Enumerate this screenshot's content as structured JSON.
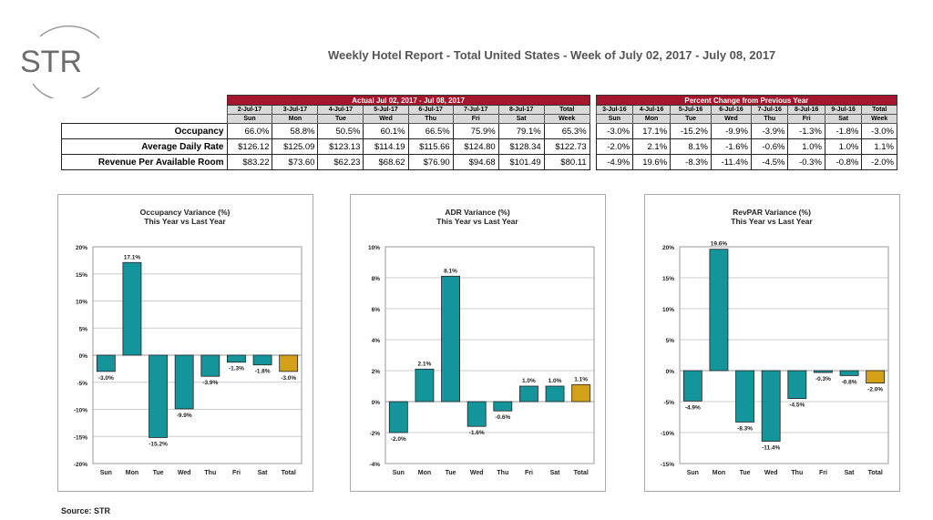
{
  "logo": {
    "text": "STR"
  },
  "title": "Weekly Hotel Report - Total United States - Week of July 02, 2017 - July 08, 2017",
  "table": {
    "actual_header": "Actual Jul 02, 2017 - Jul 08, 2017",
    "change_header": "Percent Change from Previous Year",
    "actual_dates": [
      "2-Jul-17",
      "3-Jul-17",
      "4-Jul-17",
      "5-Jul-17",
      "6-Jul-17",
      "7-Jul-17",
      "8-Jul-17",
      "Total"
    ],
    "change_dates": [
      "3-Jul-16",
      "4-Jul-16",
      "5-Jul-16",
      "6-Jul-16",
      "7-Jul-16",
      "8-Jul-16",
      "9-Jul-16",
      "Total"
    ],
    "days": [
      "Sun",
      "Mon",
      "Tue",
      "Wed",
      "Thu",
      "Fri",
      "Sat",
      "Week"
    ],
    "rows": [
      {
        "label": "Occupancy",
        "actual": [
          "66.0%",
          "58.8%",
          "50.5%",
          "60.1%",
          "66.5%",
          "75.9%",
          "79.1%",
          "65.3%"
        ],
        "change": [
          "-3.0%",
          "17.1%",
          "-15.2%",
          "-9.9%",
          "-3.9%",
          "-1.3%",
          "-1.8%",
          "-3.0%"
        ]
      },
      {
        "label": "Average Daily Rate",
        "actual": [
          "$126.12",
          "$125.09",
          "$123.13",
          "$114.19",
          "$115.66",
          "$124.80",
          "$128.34",
          "$122.73"
        ],
        "change": [
          "-2.0%",
          "2.1%",
          "8.1%",
          "-1.6%",
          "-0.6%",
          "1.0%",
          "1.0%",
          "1.1%"
        ]
      },
      {
        "label": "Revenue Per Available Room",
        "actual": [
          "$83.22",
          "$73.60",
          "$62.23",
          "$68.62",
          "$76.90",
          "$94.68",
          "$101.49",
          "$80.11"
        ],
        "change": [
          "-4.9%",
          "19.6%",
          "-8.3%",
          "-11.4%",
          "-4.5%",
          "-0.3%",
          "-0.8%",
          "-2.0%"
        ]
      }
    ]
  },
  "colors": {
    "header_red": "#a3162b",
    "bar_teal": "#13959b",
    "bar_total_gold": "#d4a017"
  },
  "chart_data": [
    {
      "type": "bar",
      "title": "Occupancy Variance (%)",
      "subtitle": "This Year vs Last Year",
      "categories": [
        "Sun",
        "Mon",
        "Tue",
        "Wed",
        "Thu",
        "Fri",
        "Sat",
        "Total"
      ],
      "values": [
        -3.0,
        17.1,
        -15.2,
        -9.9,
        -3.9,
        -1.3,
        -1.8,
        -3.0
      ],
      "labels": [
        "-3.0%",
        "17.1%",
        "-15.2%",
        "-9.9%",
        "-3.9%",
        "-1.3%",
        "-1.8%",
        "-3.0%"
      ],
      "ylim": [
        -20,
        20
      ],
      "yticks": [
        -20,
        -15,
        -10,
        -5,
        0,
        5,
        10,
        15,
        20
      ],
      "grid": true
    },
    {
      "type": "bar",
      "title": "ADR Variance (%)",
      "subtitle": "This Year vs Last Year",
      "categories": [
        "Sun",
        "Mon",
        "Tue",
        "Wed",
        "Thu",
        "Fri",
        "Sat",
        "Total"
      ],
      "values": [
        -2.0,
        2.1,
        8.1,
        -1.6,
        -0.6,
        1.0,
        1.0,
        1.1
      ],
      "labels": [
        "-2.0%",
        "2.1%",
        "8.1%",
        "-1.6%",
        "-0.6%",
        "1.0%",
        "1.0%",
        "1.1%"
      ],
      "ylim": [
        -4,
        10
      ],
      "yticks": [
        -4,
        -2,
        0,
        2,
        4,
        6,
        8,
        10
      ],
      "grid": true
    },
    {
      "type": "bar",
      "title": "RevPAR Variance (%)",
      "subtitle": "This Year vs Last Year",
      "categories": [
        "Sun",
        "Mon",
        "Tue",
        "Wed",
        "Thu",
        "Fri",
        "Sat",
        "Total"
      ],
      "values": [
        -4.9,
        19.6,
        -8.3,
        -11.4,
        -4.5,
        -0.3,
        -0.8,
        -2.0
      ],
      "labels": [
        "-4.9%",
        "19.6%",
        "-8.3%",
        "-11.4%",
        "-4.5%",
        "-0.3%",
        "-0.8%",
        "-2.0%"
      ],
      "ylim": [
        -15,
        20
      ],
      "yticks": [
        -15,
        -10,
        -5,
        0,
        5,
        10,
        15,
        20
      ],
      "grid": true
    }
  ],
  "source": "Source: STR"
}
